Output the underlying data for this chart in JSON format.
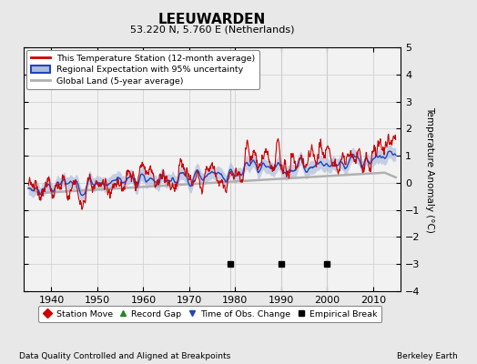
{
  "title": "LEEUWARDEN",
  "subtitle": "53.220 N, 5.760 E (Netherlands)",
  "ylabel": "Temperature Anomaly (°C)",
  "footer_left": "Data Quality Controlled and Aligned at Breakpoints",
  "footer_right": "Berkeley Earth",
  "xlim": [
    1934,
    2016
  ],
  "ylim": [
    -4,
    5
  ],
  "yticks": [
    -4,
    -3,
    -2,
    -1,
    0,
    1,
    2,
    3,
    4,
    5
  ],
  "xticks": [
    1940,
    1950,
    1960,
    1970,
    1980,
    1990,
    2000,
    2010
  ],
  "bg_color": "#e8e8e8",
  "plot_bg_color": "#f2f2f2",
  "red_color": "#cc0000",
  "blue_color": "#2244bb",
  "blue_fill_color": "#aabbdd",
  "gray_color": "#b0b0b0",
  "empirical_break_years": [
    1979,
    1990,
    2000
  ],
  "time_obs_change_years": [],
  "station_move_years": [],
  "record_gap_years": [],
  "vert_line_years": [
    1979,
    1990,
    2000
  ]
}
